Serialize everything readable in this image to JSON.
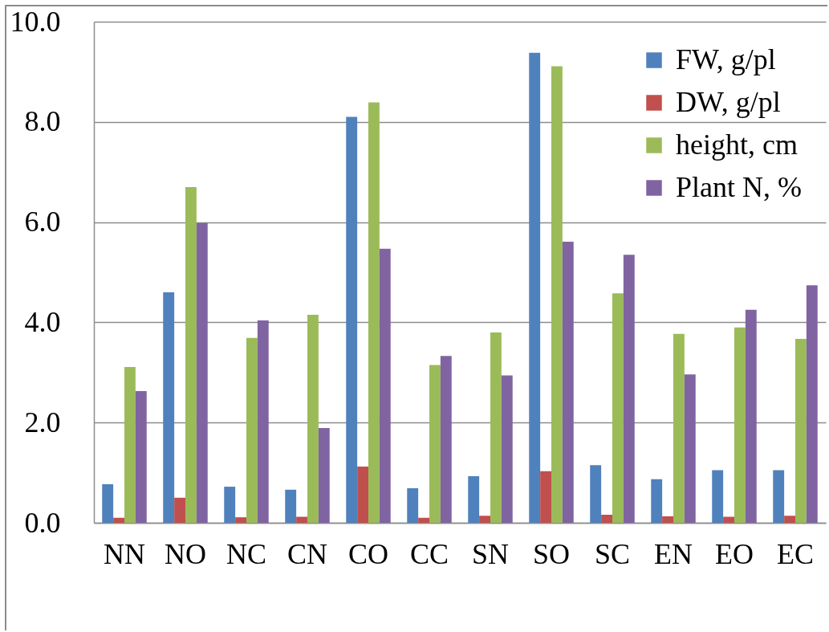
{
  "chart_data": {
    "type": "bar",
    "categories": [
      "NN",
      "NO",
      "NC",
      "CN",
      "CO",
      "CC",
      "SN",
      "SO",
      "SC",
      "EN",
      "EO",
      "EC"
    ],
    "series": [
      {
        "name": "FW, g/pl",
        "color": "#4f81bd",
        "values": [
          0.77,
          4.6,
          0.72,
          0.66,
          8.1,
          0.69,
          0.93,
          9.38,
          1.15,
          0.87,
          1.05,
          1.05
        ]
      },
      {
        "name": "DW, g/pl",
        "color": "#c0504d",
        "values": [
          0.1,
          0.5,
          0.11,
          0.12,
          1.12,
          0.1,
          0.14,
          1.03,
          0.16,
          0.13,
          0.12,
          0.14
        ]
      },
      {
        "name": "height, cm",
        "color": "#9bbb59",
        "values": [
          3.11,
          6.7,
          3.69,
          4.15,
          8.39,
          3.15,
          3.8,
          9.11,
          4.58,
          3.77,
          3.9,
          3.67
        ]
      },
      {
        "name": "Plant N, %",
        "color": "#8064a2",
        "values": [
          2.63,
          5.98,
          4.04,
          1.89,
          5.47,
          3.33,
          2.94,
          5.61,
          5.35,
          2.96,
          4.25,
          4.74
        ]
      }
    ],
    "ylim": [
      0,
      10
    ],
    "yticks": [
      {
        "value": 0,
        "label": "0.0"
      },
      {
        "value": 2,
        "label": "2.0"
      },
      {
        "value": 4,
        "label": "4.0"
      },
      {
        "value": 6,
        "label": "6.0"
      },
      {
        "value": 8,
        "label": "8.0"
      },
      {
        "value": 10,
        "label": "10.0"
      }
    ],
    "grid": "y",
    "legend": "top right"
  }
}
